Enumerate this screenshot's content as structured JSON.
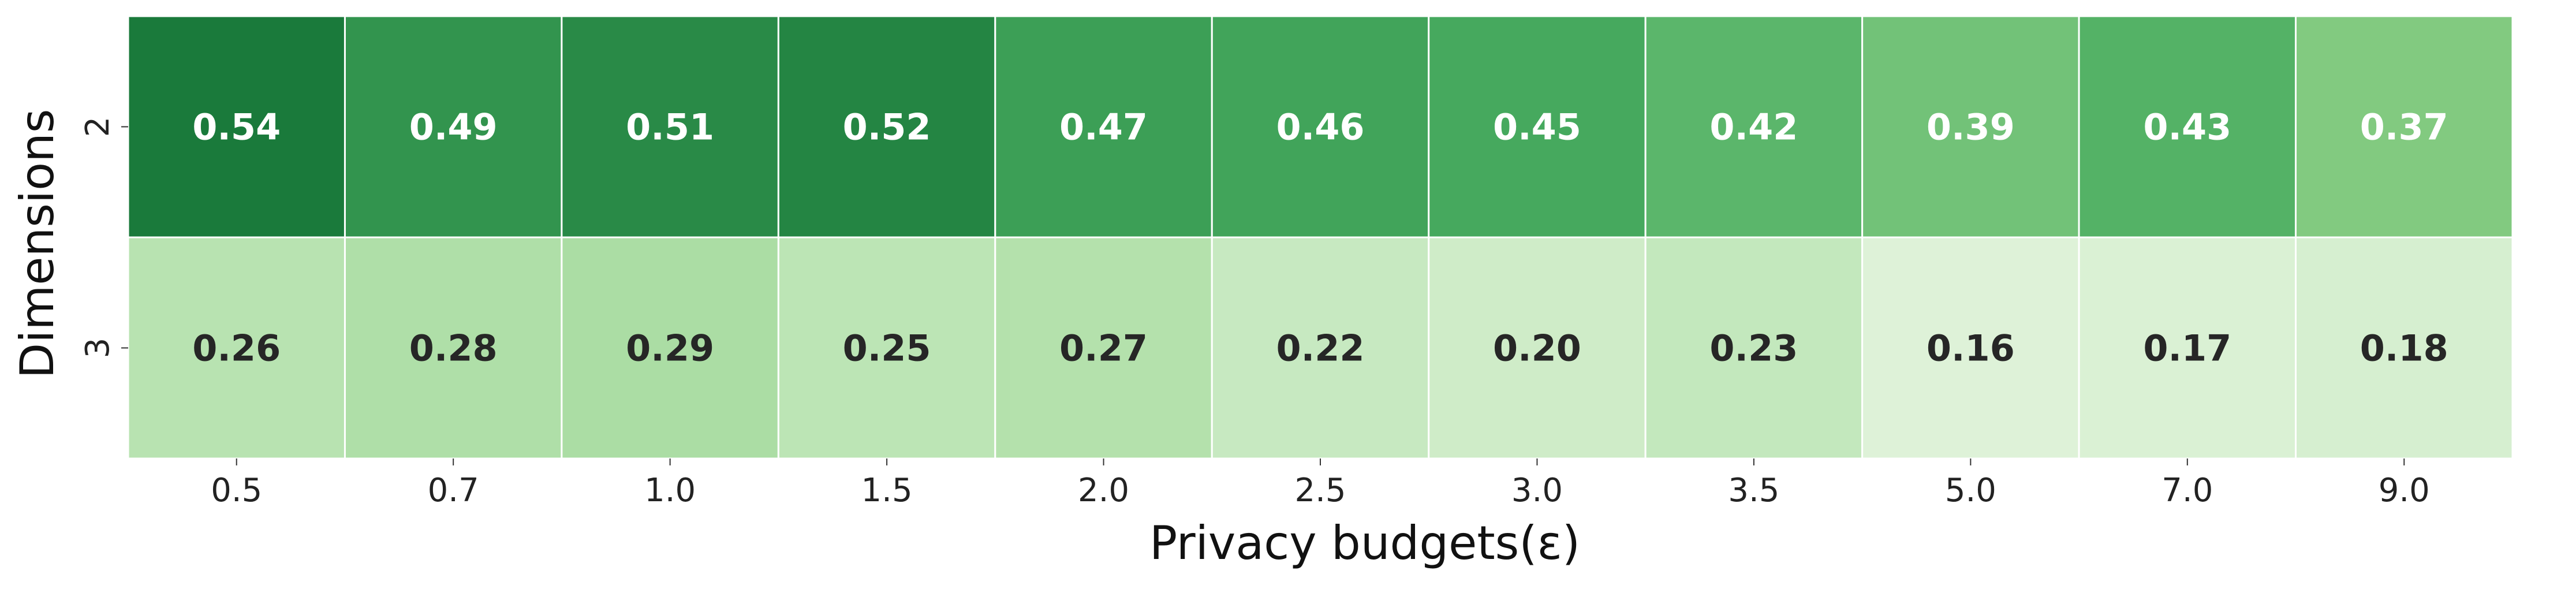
{
  "chart_data": {
    "type": "heatmap",
    "title": "",
    "xlabel": "Privacy budgets(ε)",
    "ylabel": "Dimensions",
    "x_categories": [
      "0.5",
      "0.7",
      "1.0",
      "1.5",
      "2.0",
      "2.5",
      "3.0",
      "3.5",
      "5.0",
      "7.0",
      "9.0"
    ],
    "y_categories": [
      "2",
      "3"
    ],
    "values": [
      [
        0.54,
        0.49,
        0.51,
        0.52,
        0.47,
        0.46,
        0.45,
        0.42,
        0.39,
        0.43,
        0.37
      ],
      [
        0.26,
        0.28,
        0.29,
        0.25,
        0.27,
        0.22,
        0.2,
        0.23,
        0.16,
        0.17,
        0.18
      ]
    ],
    "value_labels": [
      [
        "0.54",
        "0.49",
        "0.51",
        "0.52",
        "0.47",
        "0.46",
        "0.45",
        "0.42",
        "0.39",
        "0.43",
        "0.37"
      ],
      [
        "0.26",
        "0.28",
        "0.29",
        "0.25",
        "0.27",
        "0.22",
        "0.20",
        "0.23",
        "0.16",
        "0.17",
        "0.18"
      ]
    ],
    "colormap": "Greens",
    "color_low": "#dcf2d6",
    "color_high": "#1a7a3b",
    "text_light": "#ffffff",
    "text_dark": "#262626",
    "cell_border_color": "#ffffff",
    "colorbar": false,
    "grid": false
  }
}
